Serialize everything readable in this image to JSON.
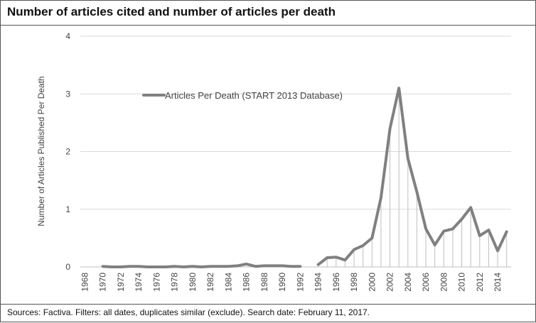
{
  "header": {
    "title": "Number of articles cited and number of articles per death"
  },
  "footer": {
    "source": "Sources: Factiva. Filters: all dates, duplicates similar (exclude). Search date: February 11, 2017."
  },
  "colors": {
    "line": "#808080",
    "grid": "#d9d9d9",
    "drop_lines": "#bfbfbf",
    "text": "#444444"
  },
  "chart_data": {
    "type": "line",
    "title": "",
    "xlabel": "",
    "ylabel": "Number of Articles Published Per Death",
    "xlim": [
      1968,
      2015
    ],
    "ylim": [
      0,
      4
    ],
    "y_ticks": [
      "0",
      "1",
      "2",
      "3",
      "4"
    ],
    "x_ticks": [
      "1968",
      "1970",
      "1972",
      "1974",
      "1976",
      "1978",
      "1980",
      "1982",
      "1984",
      "1986",
      "1988",
      "1990",
      "1992",
      "1994",
      "1996",
      "1998",
      "2000",
      "2002",
      "2004",
      "2006",
      "2008",
      "2010",
      "2012",
      "2014"
    ],
    "grid": "horizontal",
    "drop_lines": true,
    "legend_position": "top-left",
    "series": [
      {
        "name": "Articles Per Death (START 2013 Database)",
        "x": [
          1970,
          1971,
          1972,
          1973,
          1974,
          1975,
          1976,
          1977,
          1978,
          1979,
          1980,
          1981,
          1982,
          1983,
          1984,
          1985,
          1986,
          1987,
          1988,
          1989,
          1990,
          1991,
          1992,
          1994,
          1995,
          1996,
          1997,
          1998,
          1999,
          2000,
          2001,
          2002,
          2003,
          2004,
          2005,
          2006,
          2007,
          2008,
          2009,
          2010,
          2011,
          2012,
          2013,
          2014,
          2015
        ],
        "values": [
          0.01,
          0.0,
          0.0,
          0.01,
          0.01,
          0.0,
          0.0,
          0.0,
          0.01,
          0.0,
          0.01,
          0.0,
          0.01,
          0.01,
          0.01,
          0.02,
          0.05,
          0.01,
          0.02,
          0.02,
          0.02,
          0.01,
          0.01,
          0.04,
          0.16,
          0.17,
          0.12,
          0.3,
          0.37,
          0.5,
          1.2,
          2.4,
          3.1,
          1.88,
          1.3,
          0.66,
          0.38,
          0.62,
          0.66,
          0.83,
          1.03,
          0.54,
          0.64,
          0.28,
          0.61
        ],
        "gap_after": [
          1992
        ]
      }
    ]
  }
}
